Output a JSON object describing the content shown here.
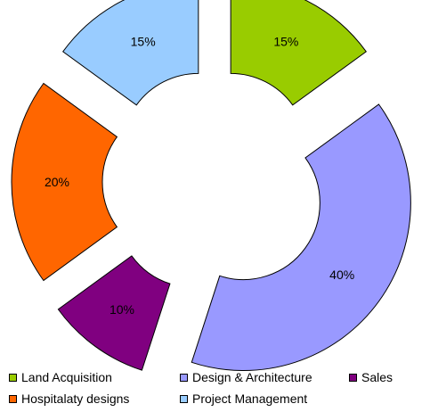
{
  "chart_data": {
    "type": "pie",
    "variant": "exploded-donut",
    "categories": [
      "Land Acquisition",
      "Design & Architecture",
      "Sales",
      "Hospitalaty designs",
      "Project Management"
    ],
    "values": [
      15,
      40,
      10,
      20,
      15
    ],
    "labels": [
      "15%",
      "40%",
      "10%",
      "20%",
      "15%"
    ],
    "colors": [
      "#99cc00",
      "#9999ff",
      "#800080",
      "#ff6600",
      "#99ccff"
    ],
    "legend": {
      "placement": "bottom",
      "entries": [
        "Land Acquisition",
        "Design & Architecture",
        "Sales",
        "Hospitalaty designs",
        "Project Management"
      ]
    }
  }
}
